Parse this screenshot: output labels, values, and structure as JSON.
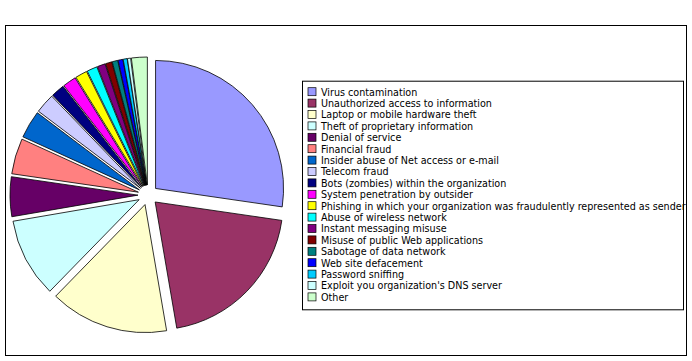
{
  "chart_data": {
    "type": "pie",
    "categories": [
      "Virus contamination",
      "Unauthorized access to information",
      "Laptop or mobile hardware theft",
      "Theft of proprietary information",
      "Denial of service",
      "Financial fraud",
      "Insider abuse of Net access or e-mail",
      "Telecom fraud",
      "Bots (zombies) within the organization",
      "System penetration by outsider",
      "Phishing in which your organization was fraudulently represented as sender",
      "Abuse of wireless network",
      "Instant messaging misuse",
      "Misuse of public Web applications",
      "Sabotage of data network",
      "Web site defacement",
      "Password sniffing",
      "Exploit you organization's DNS server",
      "Other"
    ],
    "values": [
      27.3,
      20,
      15,
      10,
      5,
      4.5,
      3.5,
      2.5,
      1.7,
      1.7,
      1.5,
      1.3,
      1,
      0.8,
      0.7,
      0.6,
      0.5,
      0.4,
      2
    ],
    "colors": [
      "#9999ff",
      "#993366",
      "#ffffcc",
      "#ccffff",
      "#660066",
      "#ff8080",
      "#0066cc",
      "#ccccff",
      "#000080",
      "#ff00ff",
      "#ffff00",
      "#00ffff",
      "#800080",
      "#800000",
      "#008080",
      "#0000ff",
      "#00ccff",
      "#ccffff",
      "#ccffcc"
    ],
    "legend": "right"
  }
}
